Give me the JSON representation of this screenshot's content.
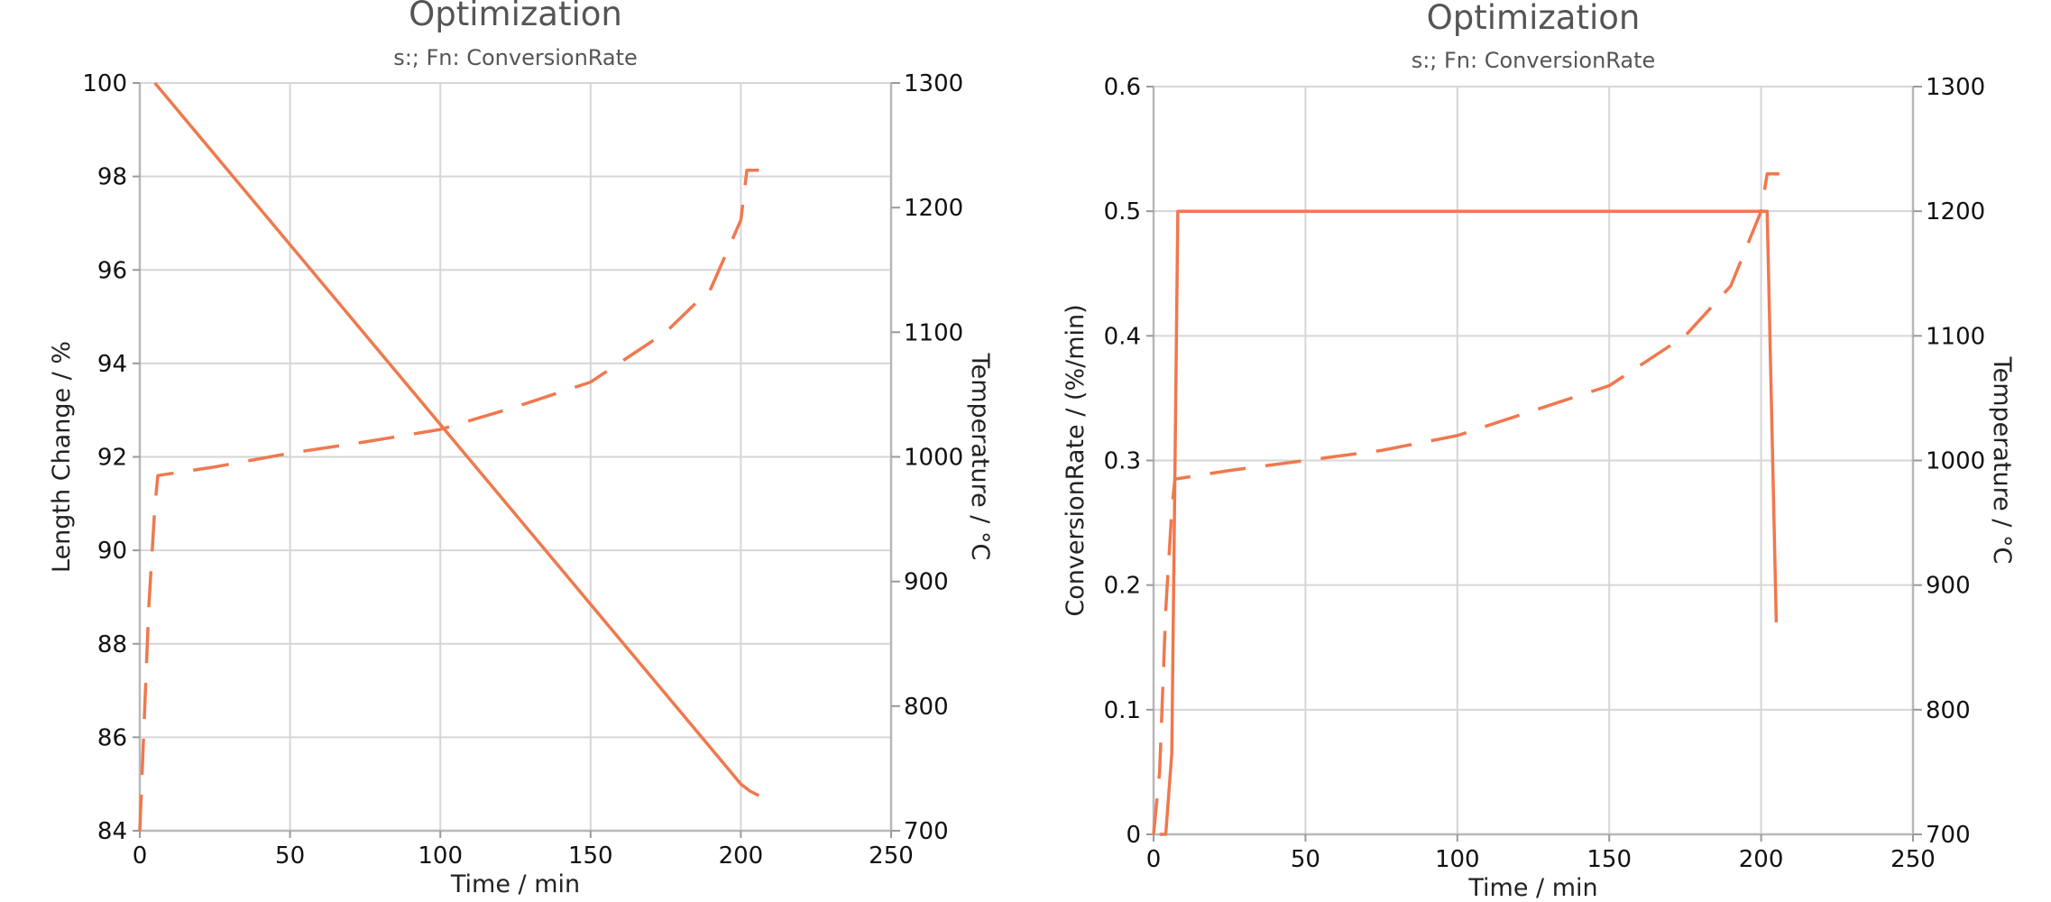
{
  "chart_data": [
    {
      "type": "line",
      "title": "Optimization",
      "subtitle": "s:; Fn: ConversionRate",
      "xlabel": "Time / min",
      "ylabel": "Length Change / %",
      "y2label": "Temperature / °C",
      "xlim": [
        0,
        250
      ],
      "ylim": [
        84,
        100
      ],
      "y2lim": [
        700,
        1300
      ],
      "xticks": [
        0,
        50,
        100,
        150,
        200,
        250
      ],
      "yticks": [
        84,
        86,
        88,
        90,
        92,
        94,
        96,
        98,
        100
      ],
      "y2ticks": [
        700,
        800,
        900,
        1000,
        1100,
        1200,
        1300
      ],
      "grid": true,
      "series": [
        {
          "axis": "left",
          "style": "solid",
          "color": "#f0784e",
          "x": [
            5,
            200,
            203,
            206
          ],
          "y": [
            100,
            85.0,
            84.85,
            84.75
          ]
        },
        {
          "axis": "right",
          "style": "dashed",
          "color": "#f0784e",
          "x": [
            0,
            3,
            5,
            6,
            25,
            50,
            75,
            100,
            125,
            150,
            175,
            190,
            200,
            202,
            206
          ],
          "y": [
            700,
            880,
            960,
            985,
            992,
            1003,
            1012,
            1022,
            1040,
            1060,
            1100,
            1135,
            1190,
            1230,
            1230
          ]
        }
      ]
    },
    {
      "type": "line",
      "title": "Optimization",
      "subtitle": "s:; Fn: ConversionRate",
      "xlabel": "Time / min",
      "ylabel": "ConversionRate / (%/min)",
      "y2label": "Temperature / °C",
      "xlim": [
        0,
        250
      ],
      "ylim": [
        0,
        0.6
      ],
      "y2lim": [
        700,
        1300
      ],
      "xticks": [
        0,
        50,
        100,
        150,
        200,
        250
      ],
      "yticks": [
        0,
        0.1,
        0.2,
        0.3,
        0.4,
        0.5,
        0.6
      ],
      "y2ticks": [
        700,
        800,
        900,
        1000,
        1100,
        1200,
        1300
      ],
      "grid": true,
      "series": [
        {
          "axis": "left",
          "style": "solid",
          "color": "#f0784e",
          "x": [
            2,
            4,
            6,
            8,
            200,
            202,
            205
          ],
          "y": [
            0,
            0,
            0.065,
            0.5,
            0.5,
            0.5,
            0.17
          ]
        },
        {
          "axis": "right",
          "style": "dashed",
          "color": "#f0784e",
          "x": [
            0,
            2,
            4,
            6,
            7,
            25,
            50,
            75,
            100,
            125,
            150,
            175,
            190,
            200,
            202,
            206
          ],
          "y": [
            700,
            750,
            880,
            960,
            985,
            992,
            1000,
            1008,
            1020,
            1040,
            1060,
            1100,
            1140,
            1200,
            1230,
            1230
          ]
        }
      ]
    }
  ]
}
